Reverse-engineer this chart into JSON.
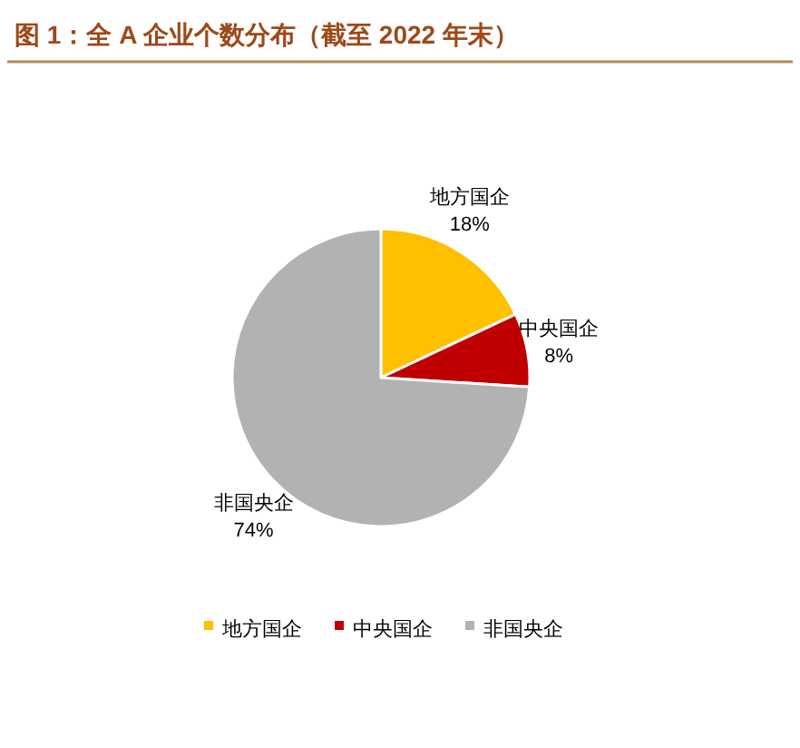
{
  "chart_data": {
    "type": "pie",
    "title": "图 1：全 A 企业个数分布（截至 2022 年末）",
    "categories": [
      "地方国企",
      "中央国企",
      "非国央企"
    ],
    "values": [
      18,
      8,
      74
    ],
    "colors": [
      "#ffc000",
      "#c00000",
      "#b2b2b2"
    ],
    "value_labels": [
      "18%",
      "8%",
      "74%"
    ],
    "legend": "bottom"
  }
}
